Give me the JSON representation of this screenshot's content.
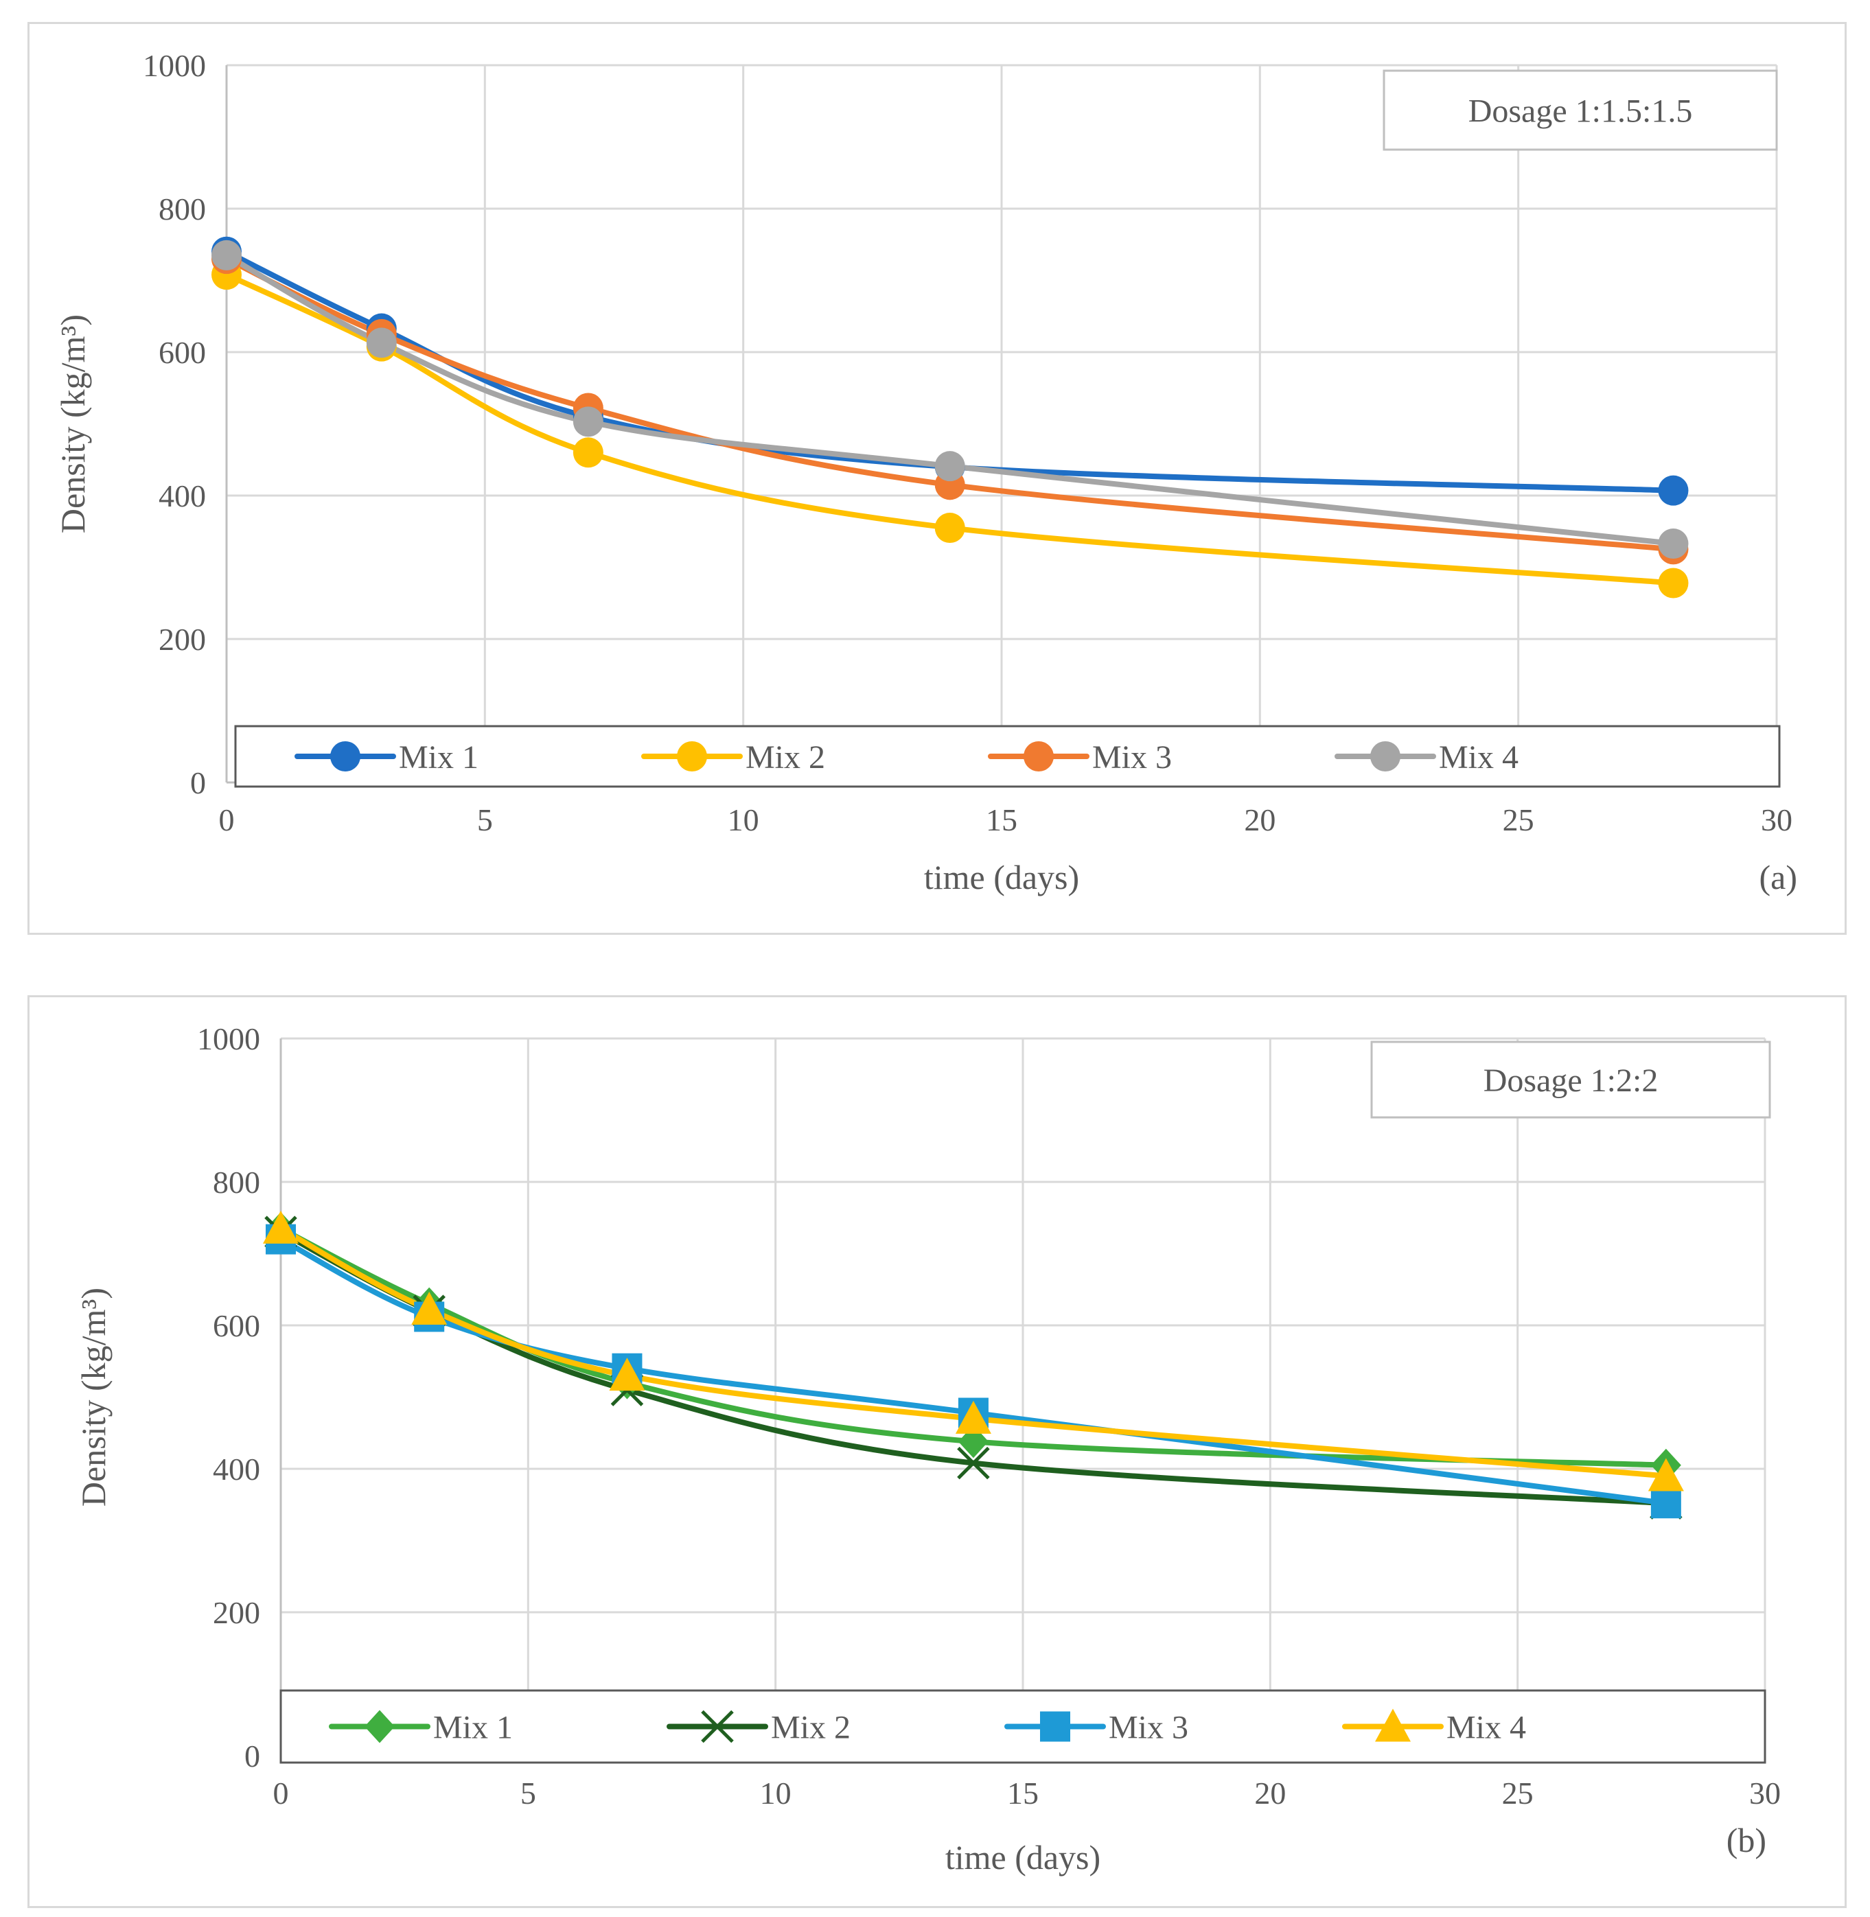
{
  "chart_data": [
    {
      "type": "line",
      "panel_label": "(a)",
      "annotation": "Dosage 1:1.5:1.5",
      "xlabel": "time (days)",
      "ylabel": "Density (kg/m³)",
      "xlim": [
        0,
        30
      ],
      "ylim": [
        0,
        1000
      ],
      "xticks": [
        0,
        5,
        10,
        15,
        20,
        25,
        30
      ],
      "yticks": [
        0,
        200,
        400,
        600,
        800,
        1000
      ],
      "grid": true,
      "smooth": true,
      "legend_position": "bottom",
      "x": [
        0,
        3,
        7,
        14,
        28
      ],
      "series": [
        {
          "name": "Mix 1",
          "color": "#1f6fc6",
          "marker": "circle",
          "values": [
            740,
            633,
            510,
            440,
            407
          ]
        },
        {
          "name": "Mix 2",
          "color": "#ffc000",
          "marker": "circle",
          "values": [
            708,
            608,
            460,
            355,
            278
          ]
        },
        {
          "name": "Mix 3",
          "color": "#f07a30",
          "marker": "circle",
          "values": [
            730,
            625,
            522,
            415,
            325
          ]
        },
        {
          "name": "Mix 4",
          "color": "#a5a5a5",
          "marker": "circle",
          "values": [
            735,
            613,
            503,
            441,
            333
          ]
        }
      ]
    },
    {
      "type": "line",
      "panel_label": "(b)",
      "annotation": "Dosage 1:2:2",
      "xlabel": "time (days)",
      "ylabel": "Density (kg/m³)",
      "xlim": [
        0,
        30
      ],
      "ylim": [
        0,
        1000
      ],
      "xticks": [
        0,
        5,
        10,
        15,
        20,
        25,
        30
      ],
      "yticks": [
        0,
        200,
        400,
        600,
        800,
        1000
      ],
      "grid": true,
      "smooth": true,
      "legend_position": "bottom",
      "x": [
        0,
        3,
        7,
        14,
        28
      ],
      "series": [
        {
          "name": "Mix 1",
          "color": "#3fae3f",
          "marker": "diamond",
          "values": [
            735,
            630,
            520,
            438,
            405
          ]
        },
        {
          "name": "Mix 2",
          "color": "#1f5f1f",
          "marker": "x",
          "values": [
            730,
            620,
            510,
            408,
            352
          ]
        },
        {
          "name": "Mix 3",
          "color": "#1e9ad6",
          "marker": "square",
          "values": [
            720,
            612,
            540,
            478,
            352
          ]
        },
        {
          "name": "Mix 4",
          "color": "#ffc000",
          "marker": "triangle",
          "values": [
            735,
            622,
            530,
            470,
            390
          ]
        }
      ]
    }
  ]
}
